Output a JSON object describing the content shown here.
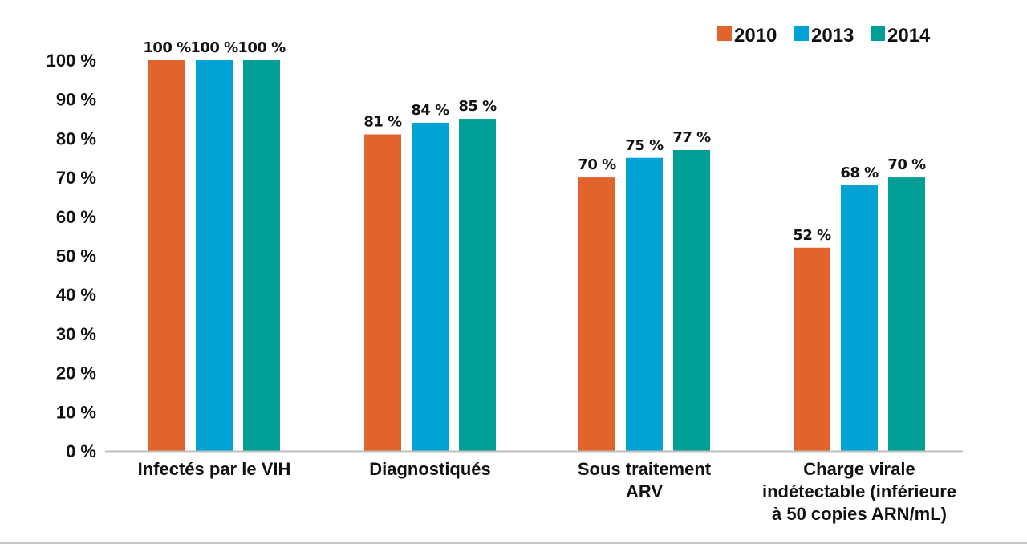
{
  "chart_data": {
    "type": "bar",
    "categories": [
      [
        "Infectés par le VIH"
      ],
      [
        "Diagnostiqués"
      ],
      [
        "Sous traitement",
        "ARV"
      ],
      [
        "Charge virale",
        "indétectable (inférieure",
        "à 50 copies ARN/mL)"
      ]
    ],
    "series": [
      {
        "name": "2010",
        "color": "#e0642c",
        "values": [
          100,
          81,
          70,
          52
        ],
        "labels": [
          "100 %",
          "81 %",
          "70 %",
          "52 %"
        ]
      },
      {
        "name": "2013",
        "color": "#00a3d4",
        "values": [
          100,
          84,
          75,
          68
        ],
        "labels": [
          "100 %",
          "84 %",
          "75 %",
          "68 %"
        ]
      },
      {
        "name": "2014",
        "color": "#009e94",
        "values": [
          100,
          85,
          77,
          70
        ],
        "labels": [
          "100 %",
          "85 %",
          "77 %",
          "70 %"
        ]
      }
    ],
    "yticks": [
      "0 %",
      "10 %",
      "20 %",
      "30 %",
      "40 %",
      "50 %",
      "60 %",
      "70 %",
      "80 %",
      "90 %",
      "100 %"
    ],
    "ylim": [
      0,
      100
    ],
    "grid": false,
    "legend": "top-right"
  }
}
